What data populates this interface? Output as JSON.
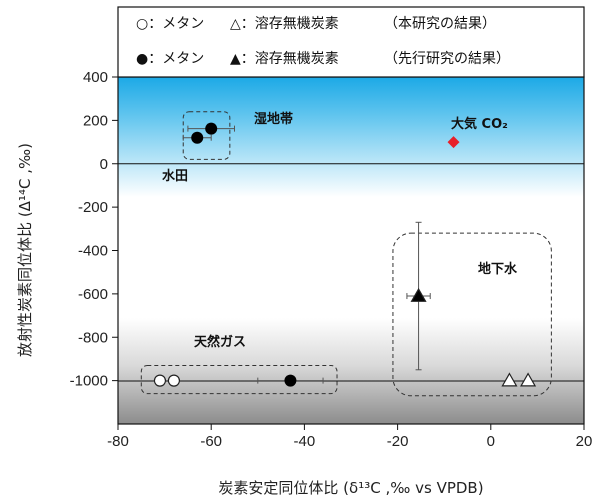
{
  "chart_data": {
    "type": "scatter",
    "xlabel": "炭素安定同位体比 (δ¹³C ,‰ vs VPDB)",
    "ylabel": "放射性炭素同位体比 (Δ¹⁴C ,‰)",
    "xlim": [
      -80,
      20
    ],
    "ylim": [
      -1200,
      400
    ],
    "x_ticks": [
      "-80",
      "-60",
      "-40",
      "-20",
      "0",
      "20"
    ],
    "y_ticks": [
      "400",
      "200",
      "0",
      "-200",
      "-400",
      "-600",
      "-800",
      "-1000"
    ],
    "legend": {
      "placement": "top",
      "rows": [
        {
          "items": [
            "○：メタン",
            "△：溶存無機炭素"
          ],
          "note": "（本研究の結果）"
        },
        {
          "items": [
            "●：メタン",
            "▲：溶存無機炭素"
          ],
          "note": "（先行研究の結果）"
        }
      ]
    },
    "reference_lines": [
      0,
      -1000
    ],
    "regions": [
      {
        "label": "湿地帯",
        "x_range": [
          -66,
          -56
        ],
        "y_range": [
          20,
          240
        ]
      },
      {
        "label": "水田",
        "x_range": null,
        "y_range": null
      },
      {
        "label": "天然ガス",
        "x_range": [
          -75,
          -33
        ],
        "y_range": [
          -1060,
          -930
        ]
      },
      {
        "label": "地下水",
        "x_range": [
          -21,
          13
        ],
        "y_range": [
          -1070,
          -320
        ]
      }
    ],
    "series": [
      {
        "name": "メタン（本研究の結果）",
        "marker": "circle-open",
        "points": [
          {
            "x": -71,
            "y": -1000
          },
          {
            "x": -68,
            "y": -1000
          }
        ]
      },
      {
        "name": "溶存無機炭素（本研究の結果）",
        "marker": "triangle-open",
        "points": [
          {
            "x": 4,
            "y": -1000
          },
          {
            "x": 8,
            "y": -1000
          }
        ]
      },
      {
        "name": "メタン（先行研究の結果）",
        "marker": "circle-filled",
        "points": [
          {
            "x": -63,
            "y": 120,
            "x_err": 3,
            "y_err": 20
          },
          {
            "x": -60,
            "y": 162,
            "x_err": 5,
            "y_err": 20
          },
          {
            "x": -43,
            "y": -1000,
            "x_err": 7
          }
        ]
      },
      {
        "name": "溶存無機炭素（先行研究の結果）",
        "marker": "triangle-filled",
        "points": [
          {
            "x": -15.5,
            "y": -610,
            "x_err": 2.5,
            "y_err": 340
          }
        ]
      },
      {
        "name": "大気 CO₂",
        "marker": "diamond-red",
        "points": [
          {
            "x": -8,
            "y": 100
          }
        ]
      }
    ],
    "colors": {
      "atmosphere_gradient_top": "#1ca9e6",
      "atmosphere_gradient_bottom": "#ffffff",
      "deep_gradient_top": "#ffffff",
      "deep_gradient_bottom": "#8c8c8c",
      "atmospheric_co2": "#e8202a",
      "markers": "#000000"
    }
  }
}
